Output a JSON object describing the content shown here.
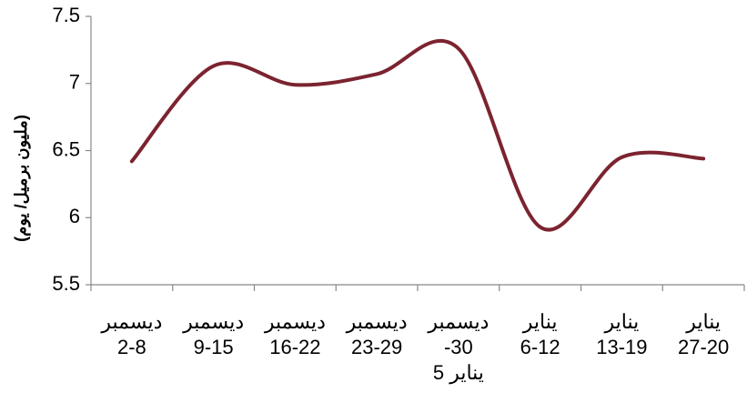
{
  "chart_data": {
    "type": "line",
    "ylabel": "(مليون برميل/ يوم)",
    "categories": [
      [
        "ديسمبر",
        "2-8"
      ],
      [
        "ديسمبر",
        "9-15"
      ],
      [
        "ديسمبر",
        "16-22"
      ],
      [
        "ديسمبر",
        "23-29"
      ],
      [
        "ديسمبر",
        "-30",
        "يناير 5"
      ],
      [
        "يناير",
        "6-12"
      ],
      [
        "يناير",
        "13-19"
      ],
      [
        "يناير",
        "27-20"
      ]
    ],
    "series": [
      {
        "name": "",
        "color": "#7b2430",
        "values": [
          6.42,
          7.13,
          6.99,
          7.07,
          7.26,
          5.93,
          6.45,
          6.44
        ]
      }
    ],
    "ylim": [
      5.5,
      7.5
    ],
    "yticks": [
      5.5,
      6,
      6.5,
      7,
      7.5
    ],
    "grid": false
  }
}
